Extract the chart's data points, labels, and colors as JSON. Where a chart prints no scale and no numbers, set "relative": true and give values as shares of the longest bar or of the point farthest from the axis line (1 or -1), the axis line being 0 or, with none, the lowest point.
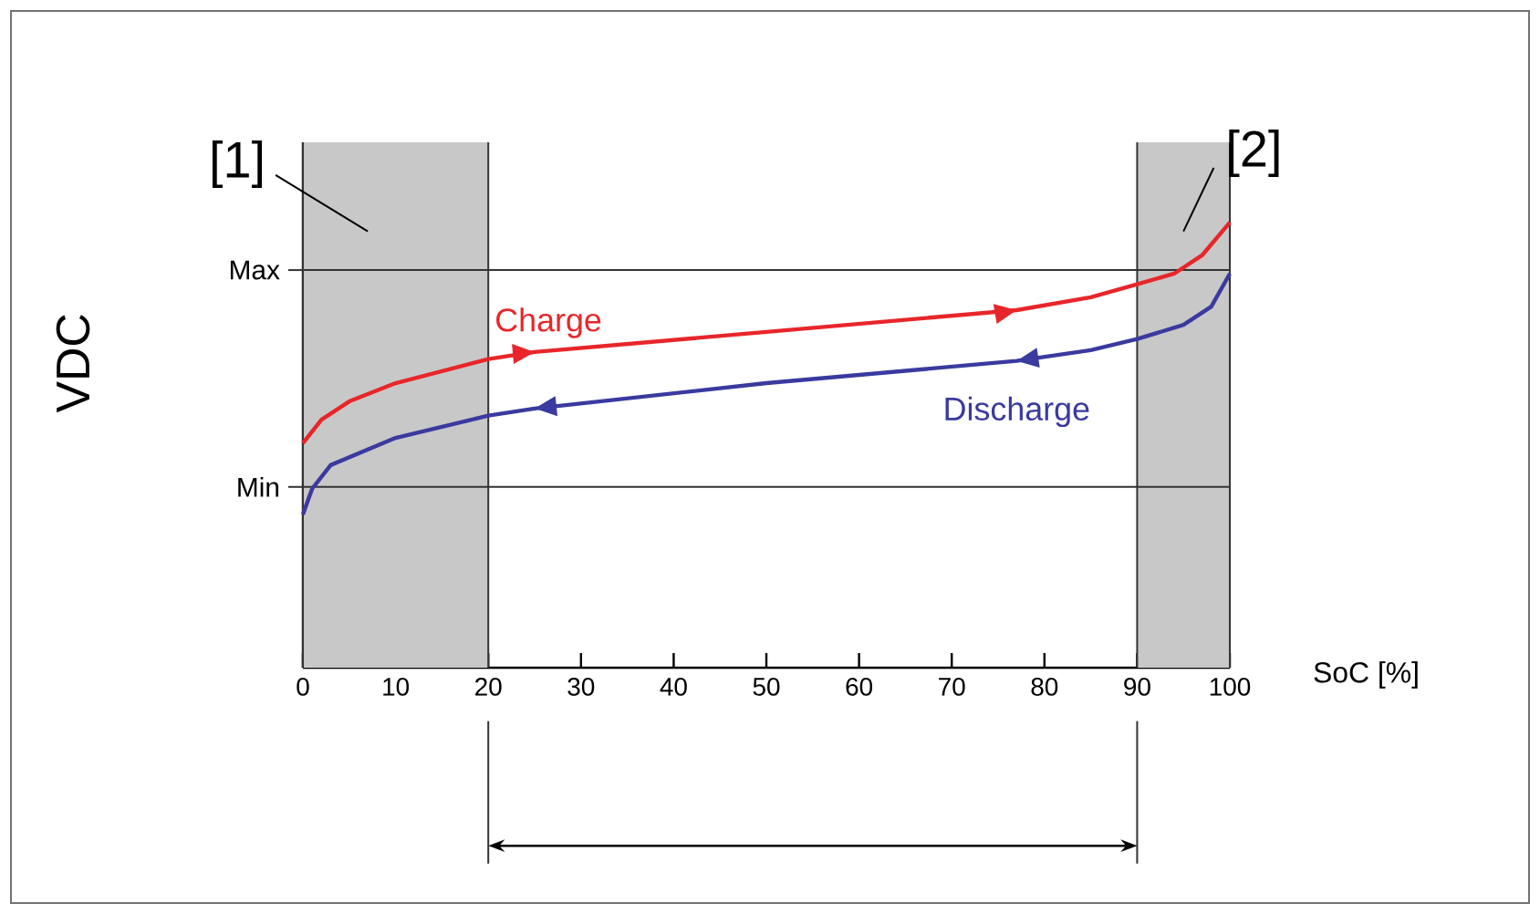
{
  "chart_data": {
    "type": "line",
    "relative": true,
    "ylabel": "VDC",
    "xlabel": "SoC [%]",
    "xlim": [
      0,
      100
    ],
    "xticks": [
      0,
      10,
      20,
      30,
      40,
      50,
      60,
      70,
      80,
      90,
      100
    ],
    "series": [
      {
        "name": "Charge",
        "color": "#e8262a",
        "x": [
          0,
          2,
          5,
          10,
          20,
          25,
          50,
          77,
          85,
          90,
          94,
          97,
          100
        ],
        "values": [
          0.504,
          0.557,
          0.598,
          0.639,
          0.693,
          0.709,
          0.754,
          0.803,
          0.832,
          0.861,
          0.885,
          0.926,
          1
        ]
      },
      {
        "name": "Discharge",
        "color": "#3a3aa0",
        "x": [
          0,
          1,
          3,
          10,
          20,
          25,
          50,
          77,
          85,
          90,
          95,
          98,
          100
        ],
        "values": [
          0.344,
          0.402,
          0.455,
          0.516,
          0.566,
          0.582,
          0.639,
          0.689,
          0.713,
          0.738,
          0.77,
          0.811,
          0.885
        ]
      }
    ],
    "ref_lines": [
      {
        "axis": "y",
        "value": 0.893,
        "label": "Max"
      },
      {
        "axis": "y",
        "value": 0.406,
        "label": "Min"
      }
    ],
    "bands": [
      {
        "axis": "x",
        "from": 0,
        "to": 20,
        "label": "[1]",
        "color": "#c8c8c8"
      },
      {
        "axis": "x",
        "from": 90,
        "to": 100,
        "label": "[2]",
        "color": "#c8c8c8"
      }
    ]
  }
}
